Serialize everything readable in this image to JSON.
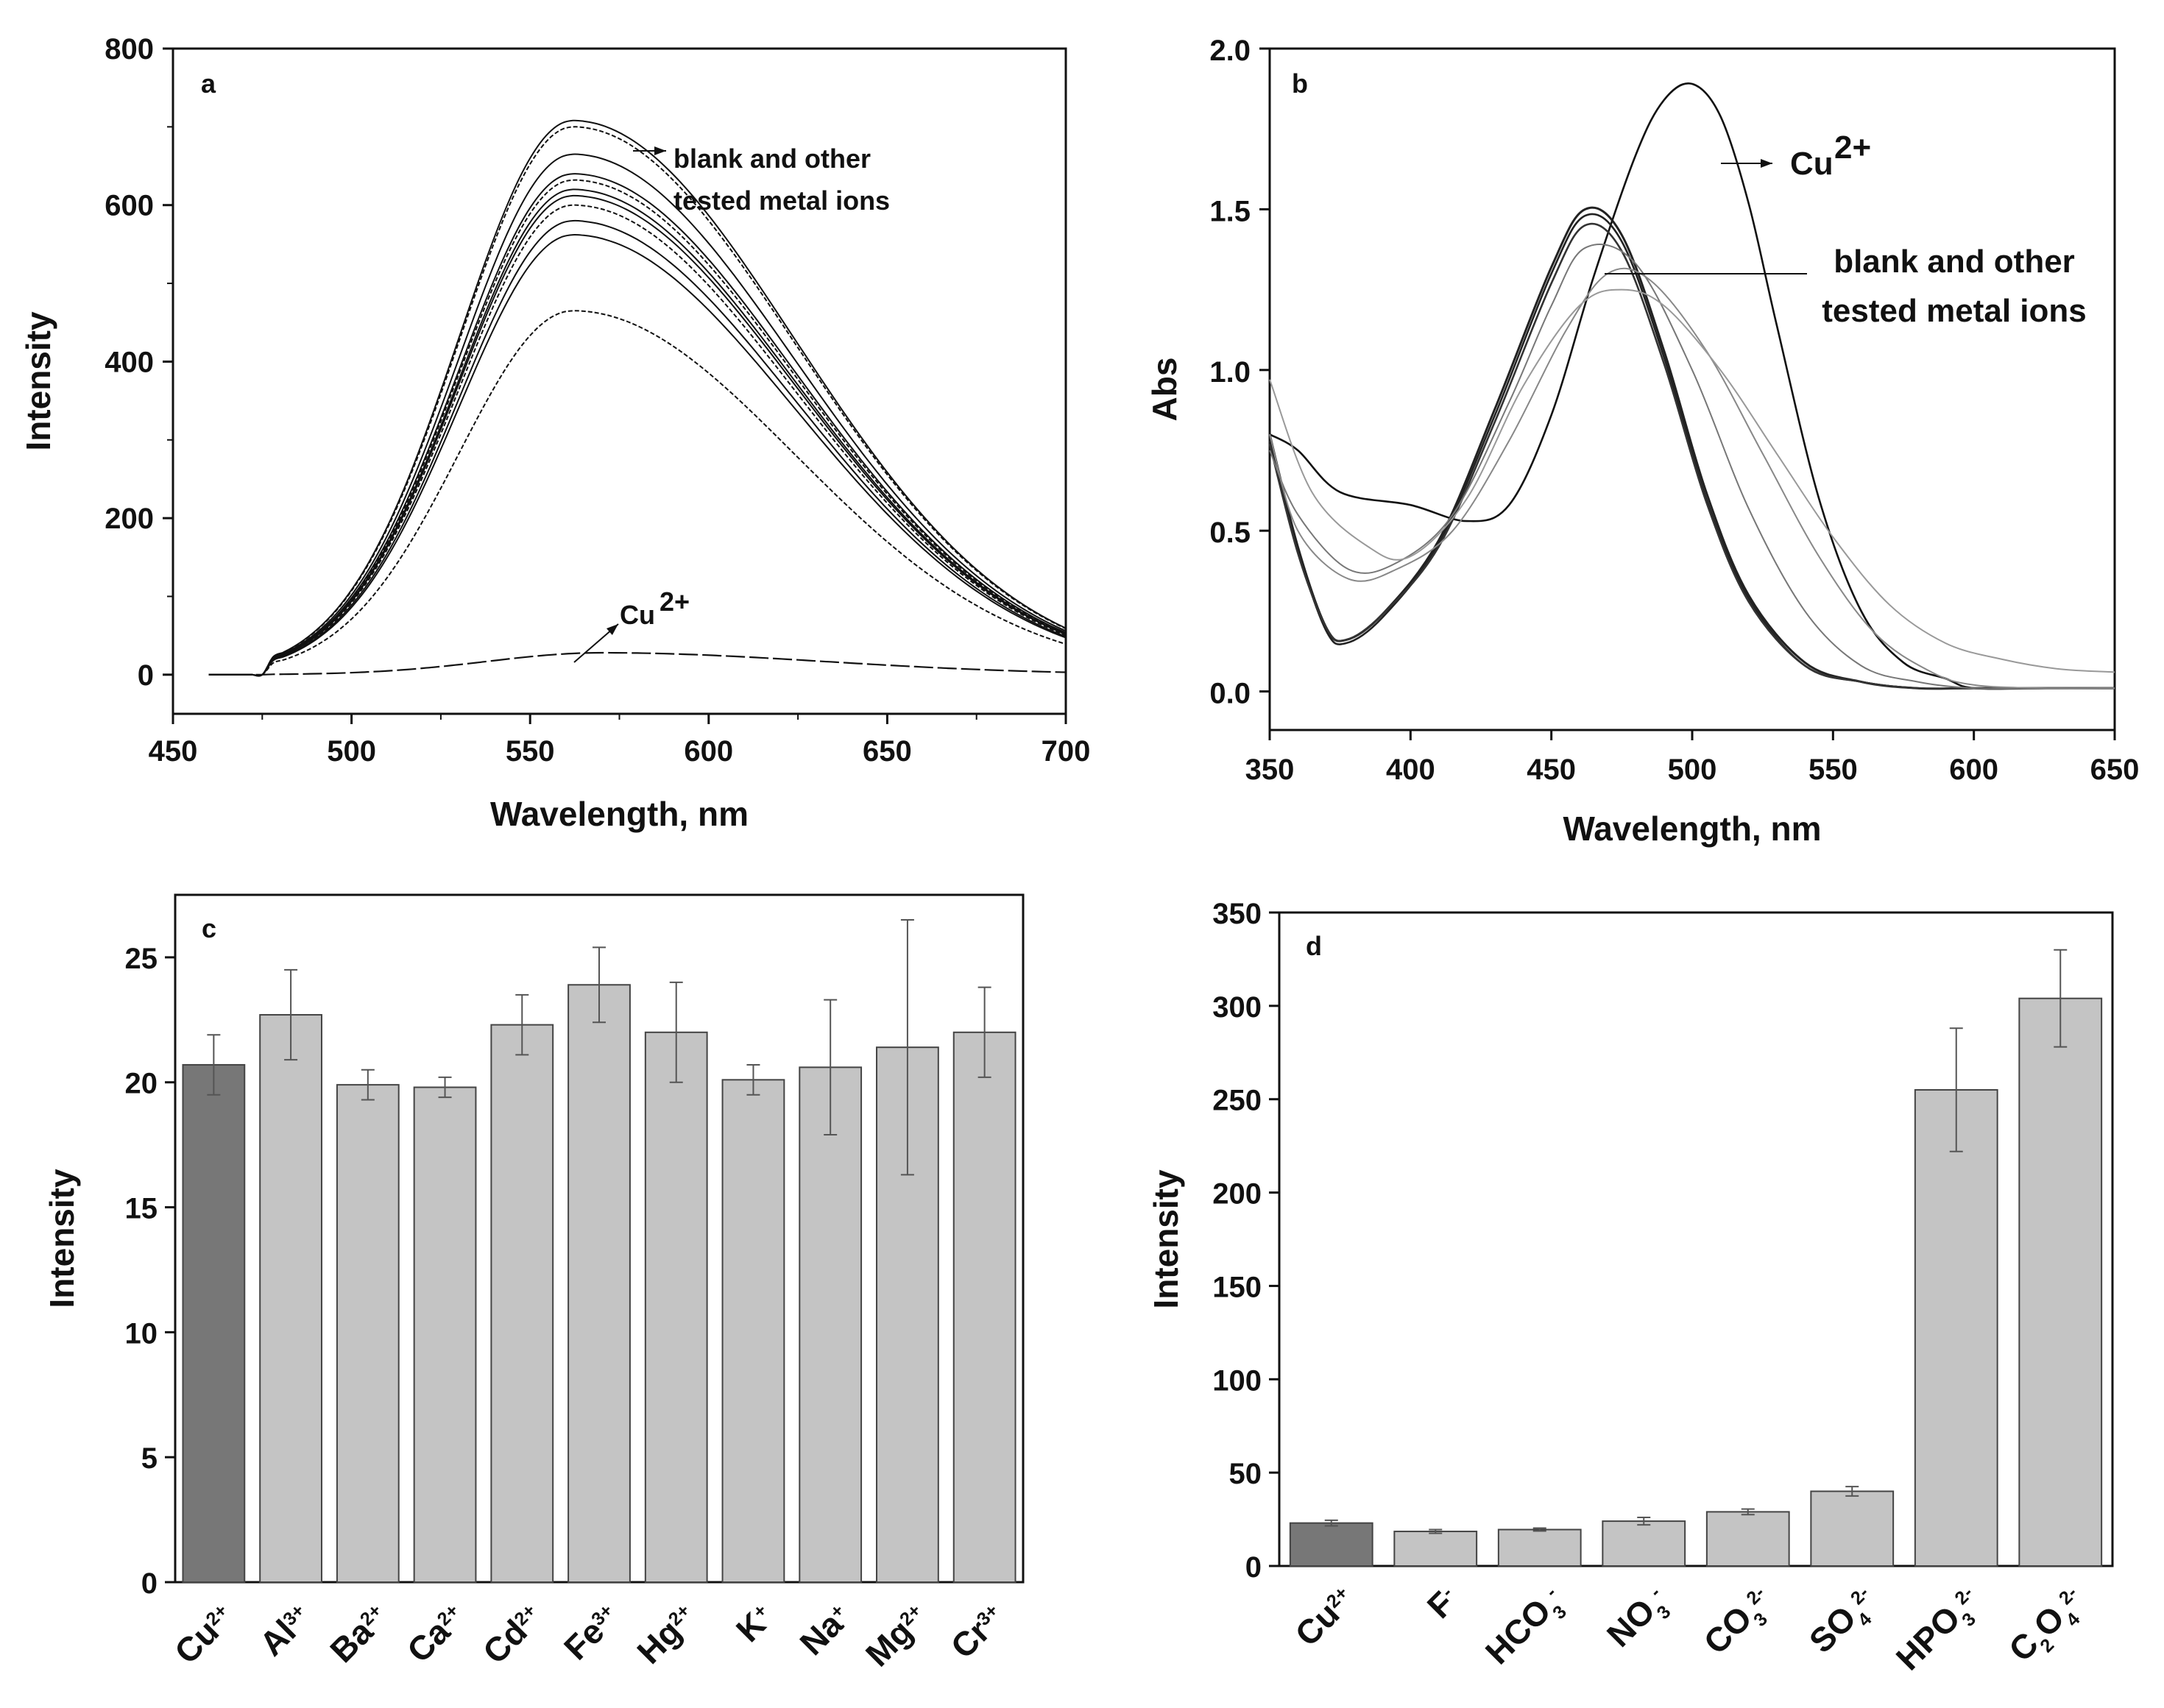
{
  "chart_data": [
    {
      "panel": "a",
      "type": "line",
      "xlabel": "Wavelength, nm",
      "ylabel": "Intensity",
      "xlim": [
        450,
        700
      ],
      "ylim": [
        -50,
        800
      ],
      "xticks": [
        "450",
        "500",
        "550",
        "600",
        "650",
        "700"
      ],
      "yticks": [
        "0",
        "200",
        "400",
        "600",
        "800"
      ],
      "annotations": {
        "others_line1": "blank and other",
        "others_line2": "tested metal ions",
        "cu_base": "Cu",
        "cu_sup": "2+"
      },
      "series": [
        {
          "name": "blank/other 1",
          "peak_x": 562,
          "peak_y": 708
        },
        {
          "name": "blank/other 2",
          "peak_x": 562,
          "peak_y": 700
        },
        {
          "name": "blank/other 3",
          "peak_x": 562,
          "peak_y": 665
        },
        {
          "name": "blank/other 4",
          "peak_x": 562,
          "peak_y": 640
        },
        {
          "name": "blank/other 5",
          "peak_x": 562,
          "peak_y": 632
        },
        {
          "name": "blank/other 6",
          "peak_x": 562,
          "peak_y": 620
        },
        {
          "name": "blank/other 7",
          "peak_x": 562,
          "peak_y": 612
        },
        {
          "name": "blank/other 8",
          "peak_x": 562,
          "peak_y": 600
        },
        {
          "name": "blank/other 9",
          "peak_x": 562,
          "peak_y": 580
        },
        {
          "name": "blank/other 10",
          "peak_x": 562,
          "peak_y": 562
        },
        {
          "name": "blank/other 11",
          "peak_x": 562,
          "peak_y": 465
        },
        {
          "name": "Cu2+",
          "peak_x": 570,
          "peak_y": 28
        }
      ]
    },
    {
      "panel": "b",
      "type": "line",
      "xlabel": "Wavelength, nm",
      "ylabel": "Abs",
      "xlim": [
        350,
        650
      ],
      "ylim": [
        -0.12,
        2.0
      ],
      "xticks": [
        "350",
        "400",
        "450",
        "500",
        "550",
        "600",
        "650"
      ],
      "yticks": [
        "0.0",
        "0.5",
        "1.0",
        "1.5",
        "2.0"
      ],
      "annotations": {
        "cu_base": "Cu",
        "cu_sup": "2+",
        "others_line1": "blank and other",
        "others_line2": "tested metal ions"
      },
      "series": [
        {
          "name": "Cu2+",
          "x": [
            350,
            360,
            375,
            400,
            420,
            435,
            450,
            465,
            480,
            490,
            500,
            510,
            520,
            530,
            545,
            560,
            575,
            590,
            600,
            625,
            650
          ],
          "y": [
            0.8,
            0.75,
            0.62,
            0.58,
            0.53,
            0.58,
            0.86,
            1.29,
            1.67,
            1.84,
            1.89,
            1.79,
            1.52,
            1.14,
            0.6,
            0.25,
            0.09,
            0.04,
            0.01,
            0.01,
            0.01
          ]
        },
        {
          "name": "blank/other dark 1",
          "x": [
            350,
            360,
            370,
            377,
            390,
            410,
            430,
            450,
            462,
            475,
            490,
            505,
            520,
            540,
            560,
            580,
            600,
            625,
            650
          ],
          "y": [
            0.8,
            0.45,
            0.2,
            0.16,
            0.24,
            0.47,
            0.88,
            1.32,
            1.5,
            1.42,
            1.06,
            0.62,
            0.3,
            0.09,
            0.03,
            0.01,
            0.01,
            0.01,
            0.01
          ]
        },
        {
          "name": "blank/other dark 2",
          "x": [
            350,
            360,
            370,
            377,
            390,
            410,
            430,
            450,
            462,
            475,
            490,
            505,
            520,
            540,
            560,
            580,
            600,
            625,
            650
          ],
          "y": [
            0.78,
            0.44,
            0.19,
            0.15,
            0.23,
            0.46,
            0.86,
            1.3,
            1.48,
            1.4,
            1.04,
            0.6,
            0.29,
            0.08,
            0.03,
            0.01,
            0.01,
            0.01,
            0.01
          ]
        },
        {
          "name": "blank/other dark 3",
          "x": [
            350,
            360,
            370,
            377,
            390,
            410,
            430,
            450,
            462,
            475,
            490,
            505,
            520,
            540,
            560,
            580,
            600,
            625,
            650
          ],
          "y": [
            0.77,
            0.43,
            0.2,
            0.16,
            0.24,
            0.45,
            0.84,
            1.27,
            1.45,
            1.37,
            1.02,
            0.59,
            0.28,
            0.08,
            0.03,
            0.01,
            0.01,
            0.01,
            0.01
          ]
        },
        {
          "name": "blank/other 4",
          "x": [
            350,
            360,
            378,
            395,
            415,
            435,
            450,
            462,
            480,
            500,
            520,
            540,
            560,
            580,
            600,
            625,
            650
          ],
          "y": [
            0.75,
            0.55,
            0.38,
            0.4,
            0.55,
            0.9,
            1.2,
            1.38,
            1.33,
            1.0,
            0.57,
            0.25,
            0.08,
            0.03,
            0.01,
            0.01,
            0.01
          ]
        },
        {
          "name": "blank/other 5",
          "x": [
            350,
            360,
            378,
            395,
            415,
            435,
            455,
            470,
            485,
            505,
            525,
            545,
            565,
            585,
            600,
            625,
            650
          ],
          "y": [
            0.8,
            0.5,
            0.35,
            0.38,
            0.5,
            0.78,
            1.12,
            1.3,
            1.28,
            1.06,
            0.74,
            0.42,
            0.18,
            0.06,
            0.02,
            0.01,
            0.01
          ]
        },
        {
          "name": "blank/other 6",
          "x": [
            350,
            365,
            385,
            400,
            420,
            440,
            460,
            475,
            490,
            510,
            530,
            550,
            570,
            590,
            610,
            630,
            650
          ],
          "y": [
            0.97,
            0.62,
            0.45,
            0.42,
            0.6,
            0.95,
            1.2,
            1.25,
            1.2,
            1.0,
            0.74,
            0.48,
            0.27,
            0.15,
            0.1,
            0.07,
            0.06
          ]
        }
      ]
    },
    {
      "panel": "c",
      "type": "bar",
      "ylabel": "Intensity",
      "ylim": [
        0,
        27.5
      ],
      "yticks": [
        "0",
        "5",
        "10",
        "15",
        "20",
        "25"
      ],
      "categories": [
        {
          "base": "Cu",
          "sup": "2+"
        },
        {
          "base": "Al",
          "sup": "3+"
        },
        {
          "base": "Ba",
          "sup": "2+"
        },
        {
          "base": "Ca",
          "sup": "2+"
        },
        {
          "base": "Cd",
          "sup": "2+"
        },
        {
          "base": "Fe",
          "sup": "3+"
        },
        {
          "base": "Hg",
          "sup": "2+"
        },
        {
          "base": "K",
          "sup": "+"
        },
        {
          "base": "Na",
          "sup": "+"
        },
        {
          "base": "Mg",
          "sup": "2+"
        },
        {
          "base": "Cr",
          "sup": "3+"
        }
      ],
      "values": [
        20.7,
        22.7,
        19.9,
        19.8,
        22.3,
        23.9,
        22.0,
        20.1,
        20.6,
        21.4,
        22.0
      ],
      "errors": [
        1.2,
        1.8,
        0.6,
        0.4,
        1.2,
        1.5,
        2.0,
        0.6,
        2.7,
        5.1,
        1.8
      ],
      "colors": [
        "#777777",
        "#c4c4c4",
        "#c4c4c4",
        "#c4c4c4",
        "#c4c4c4",
        "#c4c4c4",
        "#c4c4c4",
        "#c4c4c4",
        "#c4c4c4",
        "#c4c4c4",
        "#c4c4c4"
      ]
    },
    {
      "panel": "d",
      "type": "bar",
      "ylabel": "Intensity",
      "ylim": [
        0,
        350
      ],
      "yticks": [
        "0",
        "50",
        "100",
        "150",
        "200",
        "250",
        "300",
        "350"
      ],
      "categories": [
        {
          "parts": [
            {
              "t": "Cu",
              "k": "n"
            },
            {
              "t": "2+",
              "k": "sup"
            }
          ]
        },
        {
          "parts": [
            {
              "t": "F",
              "k": "n"
            },
            {
              "t": "-",
              "k": "sup"
            }
          ]
        },
        {
          "parts": [
            {
              "t": "HCO",
              "k": "n"
            },
            {
              "t": "3",
              "k": "sub"
            },
            {
              "t": "-",
              "k": "sup"
            }
          ]
        },
        {
          "parts": [
            {
              "t": "NO",
              "k": "n"
            },
            {
              "t": "3",
              "k": "sub"
            },
            {
              "t": "-",
              "k": "sup"
            }
          ]
        },
        {
          "parts": [
            {
              "t": "CO",
              "k": "n"
            },
            {
              "t": "3",
              "k": "sub"
            },
            {
              "t": "2-",
              "k": "sup"
            }
          ]
        },
        {
          "parts": [
            {
              "t": "SO",
              "k": "n"
            },
            {
              "t": "4",
              "k": "sub"
            },
            {
              "t": "2-",
              "k": "sup"
            }
          ]
        },
        {
          "parts": [
            {
              "t": "HPO",
              "k": "n"
            },
            {
              "t": "3",
              "k": "sub"
            },
            {
              "t": "2-",
              "k": "sup"
            }
          ]
        },
        {
          "parts": [
            {
              "t": "C",
              "k": "n"
            },
            {
              "t": "2",
              "k": "sub"
            },
            {
              "t": "O",
              "k": "n"
            },
            {
              "t": "4",
              "k": "sub"
            },
            {
              "t": "2-",
              "k": "sup"
            }
          ]
        }
      ],
      "values": [
        23,
        18.5,
        19.5,
        24,
        29,
        40,
        255,
        304
      ],
      "errors": [
        1.5,
        1.0,
        0.8,
        2.0,
        1.5,
        2.5,
        33,
        26
      ],
      "colors": [
        "#777777",
        "#c4c4c4",
        "#c4c4c4",
        "#c4c4c4",
        "#c4c4c4",
        "#c4c4c4",
        "#c4c4c4",
        "#c4c4c4"
      ]
    }
  ]
}
